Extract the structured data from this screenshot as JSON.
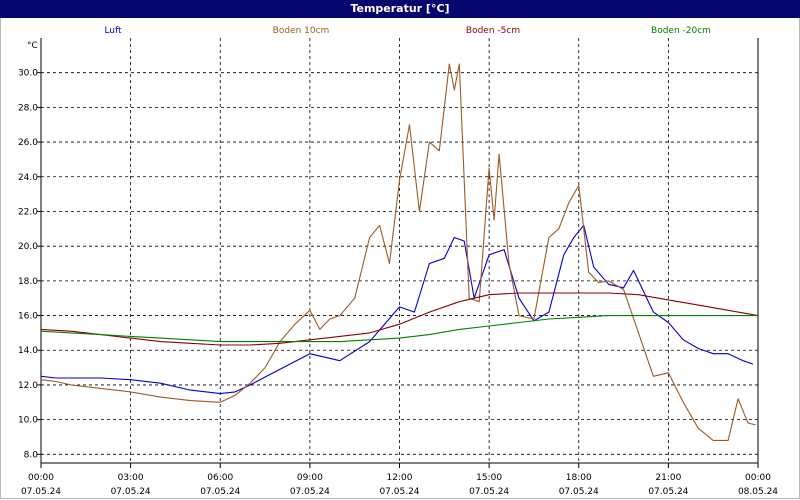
{
  "window": {
    "title": "Temperatur [°C]"
  },
  "chart_data": {
    "type": "line",
    "title": "Temperatur [°C]",
    "ylabel": "°C",
    "xlabel": "",
    "ylim": [
      7.5,
      32
    ],
    "xlim": [
      "07.05.24 00:00",
      "08.05.24 00:00"
    ],
    "grid": true,
    "legend_position": "top",
    "y_ticks": [
      "8.0",
      "10.0",
      "12.0",
      "14.0",
      "16.0",
      "18.0",
      "20.0",
      "22.0",
      "24.0",
      "26.0",
      "28.0",
      "30.0"
    ],
    "x_ticks": [
      {
        "time": "00:00",
        "date": "07.05.24"
      },
      {
        "time": "03:00",
        "date": "07.05.24"
      },
      {
        "time": "06:00",
        "date": "07.05.24"
      },
      {
        "time": "09:00",
        "date": "07.05.24"
      },
      {
        "time": "12:00",
        "date": "07.05.24"
      },
      {
        "time": "15:00",
        "date": "07.05.24"
      },
      {
        "time": "18:00",
        "date": "07.05.24"
      },
      {
        "time": "21:00",
        "date": "07.05.24"
      },
      {
        "time": "00:00",
        "date": "08.05.24"
      }
    ],
    "series": [
      {
        "name": "Luft",
        "color": "#0000cc",
        "x": [
          "00:00",
          "00:30",
          "01:00",
          "02:00",
          "03:00",
          "04:00",
          "05:00",
          "06:00",
          "06:30",
          "07:00",
          "08:00",
          "09:00",
          "09:30",
          "10:00",
          "11:00",
          "12:00",
          "12:30",
          "13:00",
          "13:30",
          "13:50",
          "14:10",
          "14:30",
          "15:00",
          "15:30",
          "16:00",
          "16:30",
          "17:00",
          "17:30",
          "17:50",
          "18:10",
          "18:30",
          "19:00",
          "19:30",
          "19:50",
          "20:30",
          "21:00",
          "21:30",
          "22:00",
          "22:30",
          "23:00",
          "23:30",
          "23:50"
        ],
        "y": [
          12.5,
          12.4,
          12.4,
          12.4,
          12.3,
          12.1,
          11.7,
          11.5,
          11.6,
          12.0,
          12.9,
          13.8,
          13.6,
          13.4,
          14.5,
          16.5,
          16.2,
          19.0,
          19.3,
          20.5,
          20.3,
          17.0,
          19.5,
          19.8,
          17.0,
          15.7,
          16.2,
          19.5,
          20.5,
          21.2,
          18.8,
          17.8,
          17.6,
          18.6,
          16.2,
          15.6,
          14.6,
          14.1,
          13.8,
          13.8,
          13.4,
          13.2
        ]
      },
      {
        "name": "Boden 10cm",
        "color": "#9c5a22",
        "x": [
          "00:00",
          "00:30",
          "01:00",
          "02:00",
          "03:00",
          "04:00",
          "05:00",
          "06:00",
          "06:30",
          "07:00",
          "07:30",
          "08:00",
          "08:30",
          "09:00",
          "09:20",
          "09:40",
          "10:00",
          "10:30",
          "11:00",
          "11:20",
          "11:40",
          "12:00",
          "12:20",
          "12:40",
          "13:00",
          "13:20",
          "13:40",
          "13:50",
          "14:00",
          "14:20",
          "14:40",
          "15:00",
          "15:10",
          "15:20",
          "15:40",
          "16:00",
          "16:30",
          "17:00",
          "17:20",
          "17:40",
          "18:00",
          "18:20",
          "18:40",
          "19:00",
          "19:30",
          "20:00",
          "20:30",
          "21:00",
          "21:30",
          "22:00",
          "22:30",
          "23:00",
          "23:20",
          "23:40",
          "23:55"
        ],
        "y": [
          12.3,
          12.2,
          12.0,
          11.8,
          11.6,
          11.3,
          11.1,
          11.0,
          11.4,
          12.1,
          13.0,
          14.5,
          15.5,
          16.3,
          15.2,
          15.8,
          16.0,
          17.0,
          20.5,
          21.2,
          19.0,
          23.8,
          27.0,
          22.0,
          26.0,
          25.5,
          30.5,
          29.0,
          30.5,
          17.0,
          16.8,
          24.5,
          21.5,
          25.3,
          19.0,
          16.0,
          15.8,
          20.5,
          21.0,
          22.5,
          23.5,
          18.5,
          17.9,
          18.0,
          17.5,
          15.0,
          12.5,
          12.7,
          11.0,
          9.5,
          8.8,
          8.8,
          11.2,
          9.8,
          9.7
        ]
      },
      {
        "name": "Boden -5cm",
        "color": "#8b0000",
        "x": [
          "00:00",
          "01:00",
          "02:00",
          "03:00",
          "04:00",
          "05:00",
          "06:00",
          "07:00",
          "08:00",
          "09:00",
          "10:00",
          "11:00",
          "12:00",
          "13:00",
          "14:00",
          "14:30",
          "15:00",
          "16:00",
          "17:00",
          "18:00",
          "19:00",
          "20:00",
          "21:00",
          "22:00",
          "23:00",
          "24:00"
        ],
        "y": [
          15.2,
          15.1,
          14.9,
          14.7,
          14.5,
          14.4,
          14.3,
          14.3,
          14.4,
          14.6,
          14.8,
          15.0,
          15.5,
          16.2,
          16.8,
          17.0,
          17.2,
          17.3,
          17.3,
          17.3,
          17.3,
          17.2,
          16.9,
          16.6,
          16.3,
          16.0
        ]
      },
      {
        "name": "Boden -20cm",
        "color": "#008000",
        "x": [
          "00:00",
          "01:00",
          "02:00",
          "03:00",
          "04:00",
          "05:00",
          "06:00",
          "07:00",
          "08:00",
          "09:00",
          "10:00",
          "11:00",
          "12:00",
          "13:00",
          "14:00",
          "15:00",
          "16:00",
          "17:00",
          "18:00",
          "19:00",
          "20:00",
          "21:00",
          "22:00",
          "23:00",
          "24:00"
        ],
        "y": [
          15.1,
          15.0,
          14.9,
          14.8,
          14.7,
          14.6,
          14.5,
          14.5,
          14.5,
          14.5,
          14.5,
          14.6,
          14.7,
          14.9,
          15.2,
          15.4,
          15.6,
          15.8,
          15.9,
          16.0,
          16.0,
          16.0,
          16.0,
          16.0,
          16.0
        ]
      }
    ]
  }
}
